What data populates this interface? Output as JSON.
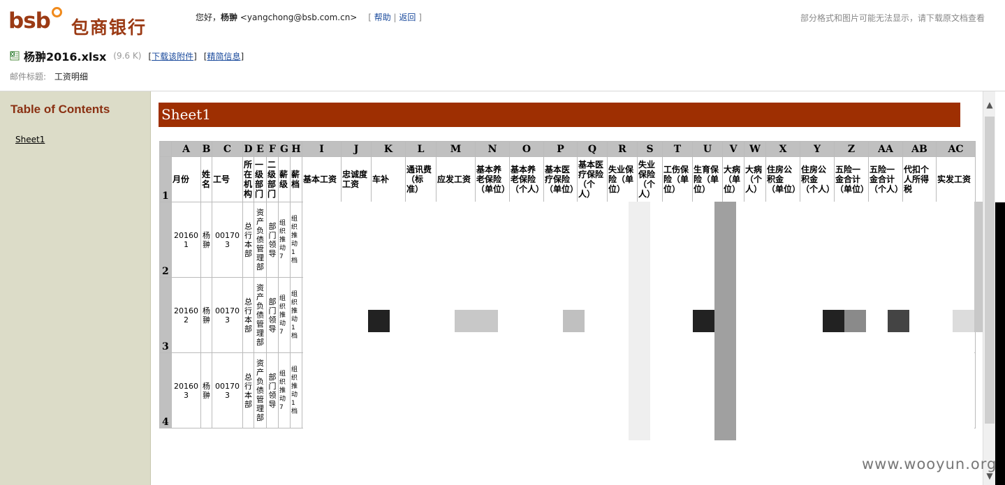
{
  "header": {
    "logo_latin": "bsb",
    "logo_cjk": "包商银行",
    "greeting_prefix": "您好，",
    "user_name": "杨翀",
    "user_email": " <yangchong@bsb.com.cn>",
    "help_link": "帮助",
    "back_link": "返回",
    "notice": "部分格式和图片可能无法显示，请下载原文档查看"
  },
  "attachment": {
    "file_name": "杨翀2016.xlsx",
    "file_size": "(9.6 K)",
    "download_link": "下载该附件",
    "simple_info_link": "精简信息",
    "subject_label": "邮件标题:",
    "subject_value": "工资明细"
  },
  "sidebar": {
    "title": "Table of Contents",
    "items": [
      "Sheet1"
    ]
  },
  "sheet": {
    "name": "Sheet1",
    "columns": [
      "A",
      "B",
      "C",
      "D",
      "E",
      "F",
      "G",
      "H",
      "I",
      "J",
      "K",
      "L",
      "M",
      "N",
      "O",
      "P",
      "Q",
      "R",
      "S",
      "T",
      "U",
      "V",
      "W",
      "X",
      "Y",
      "Z",
      "AA",
      "AB",
      "AC"
    ],
    "header_row": [
      "月份",
      "姓名",
      "工号",
      "所在机构",
      "一级部门",
      "二级部门",
      "薪级",
      "薪档",
      "基本工资",
      "忠诚度工资",
      "车补",
      "通讯费（标准）",
      "应发工资",
      "基本养老保险（单位）",
      "基本养老保险（个人）",
      "基本医疗保险（单位）",
      "基本医疗保险（个人）",
      "失业保险（单位）",
      "失业保险（个人）",
      "工伤保险（单位）",
      "生育保险（单位）",
      "大病（单位）",
      "大病（个人）",
      "住房公积金（单位）",
      "住房公积金（个人）",
      "五险一金合计（单位）",
      "五险一金合计（个人）",
      "代扣个人所得税",
      "实发工资"
    ],
    "row_numbers": [
      "1",
      "2",
      "3",
      "4"
    ],
    "rows": [
      {
        "month": "201601",
        "name": "杨翀",
        "id": "001703",
        "org": "总行本部",
        "dept1": "资产负债管理部",
        "dept2": "部门领导",
        "grade": "组织推动7",
        "level": "组织推动1档"
      },
      {
        "month": "201602",
        "name": "杨翀",
        "id": "001703",
        "org": "总行本部",
        "dept1": "资产负债管理部",
        "dept2": "部门领导",
        "grade": "组织推动7",
        "level": "组织推动1档"
      },
      {
        "month": "201603",
        "name": "杨翀",
        "id": "001703",
        "org": "总行本部",
        "dept1": "资产负债管理部",
        "dept2": "部门领导",
        "grade": "组织推动7",
        "level": "组织推动1档"
      }
    ]
  },
  "watermark": "www.wooyun.org"
}
